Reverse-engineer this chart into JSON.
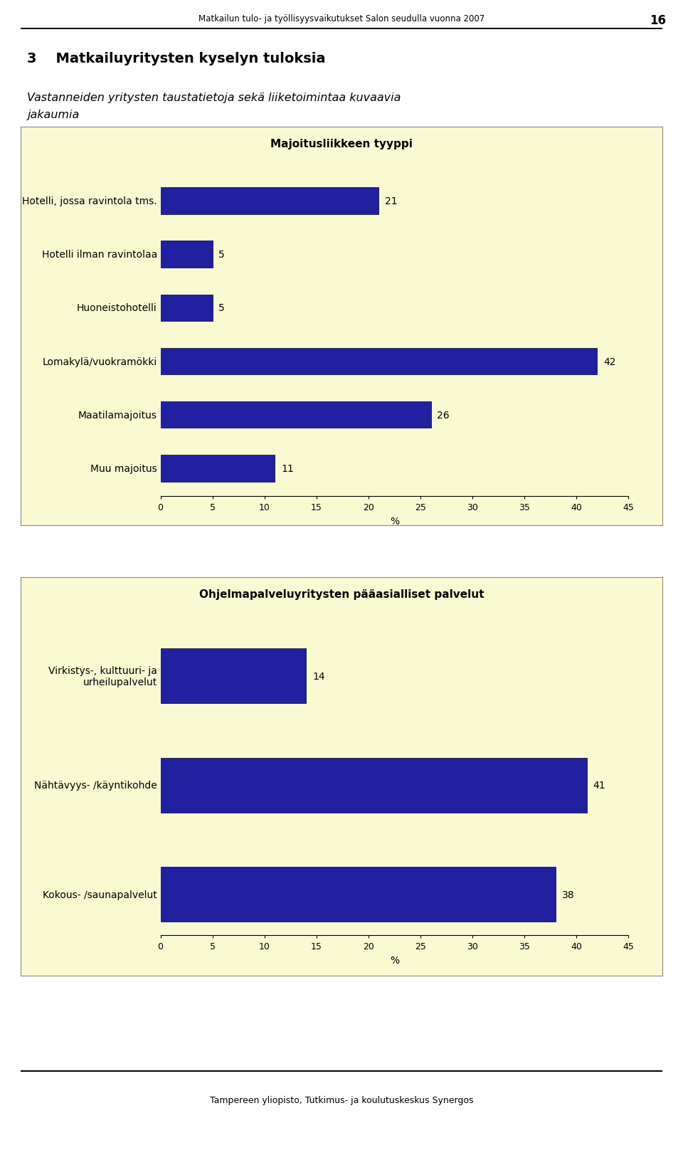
{
  "page_header": "Matkailun tulo- ja työllisyysvaikutukset Salon seudulla vuonna 2007",
  "page_number": "16",
  "section_title": "3    Matkailuyritysten kyselyn tuloksia",
  "subtitle_line1": "Vastanneiden yritysten taustatietoja sekä liiketoimintaa kuvaavia",
  "subtitle_line2": "jakaumia",
  "footer": "Tampereen yliopisto, Tutkimus- ja koulutuskeskus Synergos",
  "chart1_title": "Majoitusliikkeen tyyppi",
  "chart1_categories": [
    "Hotelli, jossa ravintola tms.",
    "Hotelli ilman ravintolaa",
    "Huoneistohotelli",
    "Lomakylä/vuokramökki",
    "Maatilamajoitus",
    "Muu majoitus"
  ],
  "chart1_values": [
    21,
    5,
    5,
    42,
    26,
    11
  ],
  "chart1_xlabel": "%",
  "chart1_xlim": [
    0,
    45
  ],
  "chart1_xticks": [
    0,
    5,
    10,
    15,
    20,
    25,
    30,
    35,
    40,
    45
  ],
  "chart2_title": "Ohjelmapalveluyritysten pääasialliset palvelut",
  "chart2_categories": [
    "Virkistys-, kulttuuri- ja\nurheilupalvelut",
    "Nähtävyys- /käyntikohde",
    "Kokous- /saunapalvelut"
  ],
  "chart2_values": [
    14,
    41,
    38
  ],
  "chart2_xlabel": "%",
  "chart2_xlim": [
    0,
    45
  ],
  "chart2_xticks": [
    0,
    5,
    10,
    15,
    20,
    25,
    30,
    35,
    40,
    45
  ],
  "bar_color": "#2020A0",
  "bar_edge_color": "#101060",
  "chart_bg": "#FAFAD2",
  "label_fontsize": 10,
  "title_fontsize": 11,
  "value_fontsize": 10,
  "bar_height": 0.5
}
